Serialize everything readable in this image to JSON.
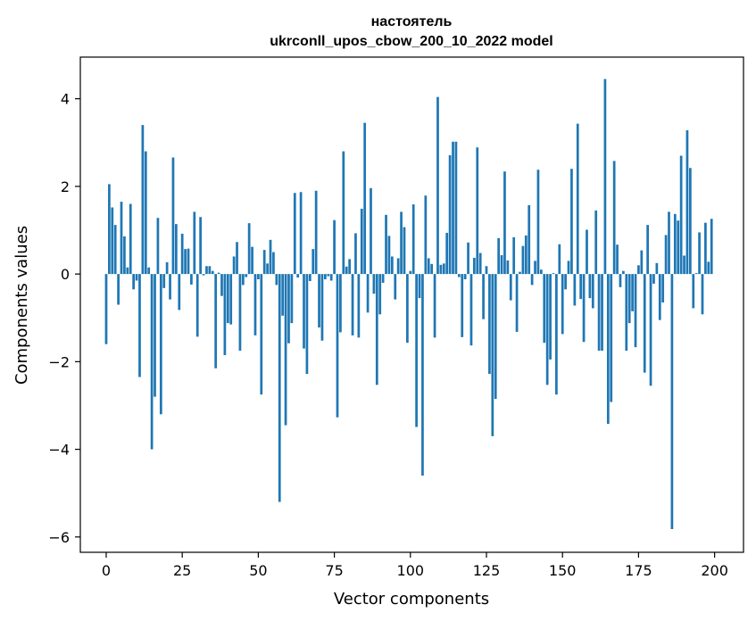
{
  "chart_data": {
    "type": "bar",
    "title": "настоятель",
    "subtitle": "ukrconll_upos_cbow_200_10_2022 model",
    "xlabel": "Vector components",
    "ylabel": "Components values",
    "xlim": [
      -8.5,
      209.5
    ],
    "ylim": [
      -6.35,
      4.95
    ],
    "xticks": [
      0,
      25,
      50,
      75,
      100,
      125,
      150,
      175,
      200
    ],
    "yticks": [
      -6,
      -4,
      -2,
      0,
      2,
      4
    ],
    "ytick_labels": [
      "−6",
      "−4",
      "−2",
      "0",
      "2",
      "4"
    ],
    "color": "#1f77b4",
    "values": [
      -1.6,
      2.05,
      1.52,
      1.12,
      -0.7,
      1.65,
      0.86,
      0.15,
      1.6,
      -0.35,
      -0.15,
      -2.35,
      3.4,
      2.8,
      0.15,
      -4.0,
      -2.8,
      1.28,
      -3.2,
      -0.32,
      0.27,
      -0.58,
      2.66,
      1.14,
      -0.82,
      0.92,
      0.57,
      0.58,
      -0.24,
      1.42,
      -1.43,
      1.3,
      -0.03,
      0.18,
      0.18,
      0.07,
      -2.15,
      0.03,
      -0.5,
      -1.85,
      -1.12,
      -1.15,
      0.4,
      0.73,
      -1.75,
      -0.25,
      -0.07,
      1.16,
      0.62,
      -1.4,
      -0.12,
      -2.75,
      0.55,
      0.24,
      0.78,
      0.5,
      -0.25,
      -5.2,
      -0.95,
      -3.45,
      -1.58,
      -1.12,
      1.85,
      -0.08,
      1.87,
      -1.7,
      -2.28,
      -0.16,
      0.57,
      1.9,
      -1.22,
      -1.52,
      -0.12,
      -0.05,
      -0.15,
      1.23,
      -3.27,
      -1.33,
      2.8,
      0.17,
      0.34,
      -1.4,
      0.93,
      -1.45,
      1.49,
      3.45,
      -0.88,
      1.96,
      -0.45,
      -2.53,
      -0.92,
      -0.2,
      1.35,
      0.87,
      0.4,
      -0.58,
      0.36,
      1.42,
      1.07,
      -1.57,
      0.07,
      1.59,
      -3.49,
      -0.55,
      -4.6,
      1.79,
      0.36,
      0.23,
      -1.45,
      4.04,
      0.21,
      0.24,
      0.94,
      2.71,
      3.02,
      3.02,
      -0.07,
      -1.44,
      -0.12,
      0.72,
      -1.63,
      0.37,
      2.89,
      0.48,
      -1.03,
      0.18,
      -2.28,
      -3.7,
      -2.85,
      0.82,
      0.43,
      2.34,
      0.31,
      -0.6,
      0.84,
      -1.32,
      0.05,
      0.64,
      0.88,
      1.57,
      -0.25,
      0.3,
      2.38,
      0.1,
      -1.57,
      -2.53,
      -1.95,
      0.02,
      -2.75,
      0.68,
      -1.37,
      -0.35,
      0.3,
      2.4,
      -0.72,
      3.43,
      -0.57,
      -1.55,
      1.01,
      -0.55,
      -0.78,
      1.45,
      -1.75,
      -1.75,
      4.45,
      -3.42,
      -2.92,
      2.58,
      0.67,
      -0.3,
      0.07,
      -1.75,
      -1.12,
      -0.85,
      -1.67,
      0.2,
      0.54,
      -2.25,
      1.12,
      -2.55,
      -0.22,
      0.25,
      -1.05,
      -0.65,
      0.89,
      1.42,
      -5.82,
      1.37,
      1.22,
      2.7,
      0.42,
      3.28,
      2.42,
      -0.78,
      0.02,
      0.95,
      -0.92,
      1.17,
      0.28,
      1.26
    ]
  }
}
